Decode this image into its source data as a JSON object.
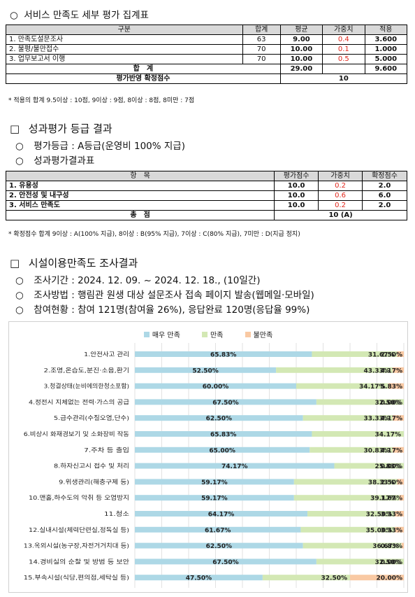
{
  "section1": {
    "title": "서비스 만족도 세부 평가 집계표",
    "headers": [
      "구분",
      "합계",
      "평균",
      "가중치",
      "적용"
    ],
    "rows": [
      {
        "name": "1. 만족도설문조사",
        "sum": "63",
        "avg": "9.00",
        "weight": "0.4",
        "applied": "3.600"
      },
      {
        "name": "2. 불평/불만접수",
        "sum": "70",
        "avg": "10.00",
        "weight": "0.1",
        "applied": "1.000"
      },
      {
        "name": "3. 업무보고서 이행",
        "sum": "70",
        "avg": "10.00",
        "weight": "0.5",
        "applied": "5.000"
      }
    ],
    "total_label": "합　계",
    "total_avg": "29.00",
    "total_applied": "9.600",
    "final_label": "평가반영 확정점수",
    "final_value": "10",
    "note": "* 적용의 합계 9.5이상 : 10점, 9이상 : 9점, 8이상 : 8점, 8미만 : 7점"
  },
  "section2": {
    "title": "성과평가 등급 결과",
    "grade_line": "평가등급 : A등급(운영비 100% 지급)",
    "table_title": "성과평가결과표",
    "headers": [
      "항　목",
      "평가점수",
      "가중치",
      "확정점수"
    ],
    "rows": [
      {
        "name": "1. 유용성",
        "score": "10.0",
        "weight": "0.2",
        "final": "2.0"
      },
      {
        "name": "2. 안전성 및 내구성",
        "score": "10.0",
        "weight": "0.6",
        "final": "6.0"
      },
      {
        "name": "3. 서비스 만족도",
        "score": "10.0",
        "weight": "0.2",
        "final": "2.0"
      }
    ],
    "total_label": "총　점",
    "total_value": "10 (A)",
    "note": "* 확정점수 합계 9이상 : A(100% 지급), 8이상 : B(95% 지급), 7이상 : C(80% 지급), 7미만 : D(지급 정지)"
  },
  "section3": {
    "title": "시설이용만족도 조사결과",
    "period": "조사기간 : 2024. 12. 09. ~ 2024. 12. 18., (10일간)",
    "method": "조사방법 : 행림관 원생 대상 설문조사 접속 페이지 발송(웹메일·모바일)",
    "participation": "참여현황 : 참여 121명(참여율 26%), 응답완료 120명(응답율 99%)"
  },
  "markers": {
    "circle": "○",
    "square": "□"
  },
  "colors": {
    "very_satisfied": "#add8e6",
    "satisfied": "#d3e8b4",
    "unsatisfied": "#f9c9a3",
    "weight_red": "#e0261b",
    "header_gray": "#d9d9d9"
  },
  "chart_data": {
    "type": "bar",
    "stacked": true,
    "orientation": "horizontal",
    "categories": [
      "1.안전사고 관리",
      "2.조명,온습도,분진·소음,환기",
      "3.청결상태(눈비에의한청소포함)",
      "4.정전시 지체없는 전력·가스의 공급",
      "5.급수관리(수질오염,단수)",
      "6.비상시 화재경보기 및 소화장비 작동",
      "7.주차 등 출입",
      "8.하자신고시 접수 및 처리",
      "9.위생관리(해충구제 등)",
      "10.맨홀,하수도의 악취 등 오염방지",
      "11.청소",
      "12.실내시설(체력단련실,정독실 등)",
      "13.옥외시설(농구장,자전거거치대 등)",
      "14.경비실의 순찰 및 방범 등 보안",
      "15.부속시설(식당,편의점,세탁실 등)"
    ],
    "series": [
      {
        "name": "매우 만족",
        "values": [
          65.83,
          52.5,
          60.0,
          67.5,
          62.5,
          65.83,
          65.0,
          74.17,
          59.17,
          59.17,
          64.17,
          61.67,
          62.5,
          67.5,
          47.5
        ],
        "labels": [
          "65.83%",
          "52.50%",
          "60.00%",
          "67.50%",
          "62.50%",
          "65.83%",
          "65.00%",
          "74.17%",
          "59.17%",
          "59.17%",
          "64.17%",
          "61.67%",
          "62.50%",
          "67.50%",
          "47.50%"
        ]
      },
      {
        "name": "만족",
        "values": [
          31.67,
          43.33,
          34.17,
          32.5,
          33.33,
          34.17,
          30.83,
          25.83,
          38.33,
          39.17,
          32.5,
          35.0,
          36.67,
          32.5,
          32.5
        ],
        "labels": [
          "31.67%",
          "43.33%",
          "34.17%",
          "32.50%",
          "33.33%",
          "34.17%",
          "30.83%",
          "25.83%",
          "38.33%",
          "39.17%",
          "32.50%",
          "35.00%",
          "36.67%",
          "32.50%",
          "32.50%"
        ]
      },
      {
        "name": "불만족",
        "values": [
          2.5,
          4.17,
          5.83,
          0.0,
          4.17,
          0.0,
          4.17,
          0.0,
          2.5,
          1.67,
          3.33,
          3.33,
          0.83,
          0.0,
          20.0
        ],
        "labels": [
          "2.50%",
          "4.17%",
          "5.83%",
          "0.00%",
          "4.17%",
          "",
          "4.17%",
          "0.00%",
          "2.50%",
          "1.67%",
          "3.33%",
          "3.33%",
          "0.83%",
          "0.00%",
          "20.00%"
        ]
      }
    ],
    "xlim": [
      0,
      100
    ],
    "legend": "top-center",
    "grid": true
  }
}
